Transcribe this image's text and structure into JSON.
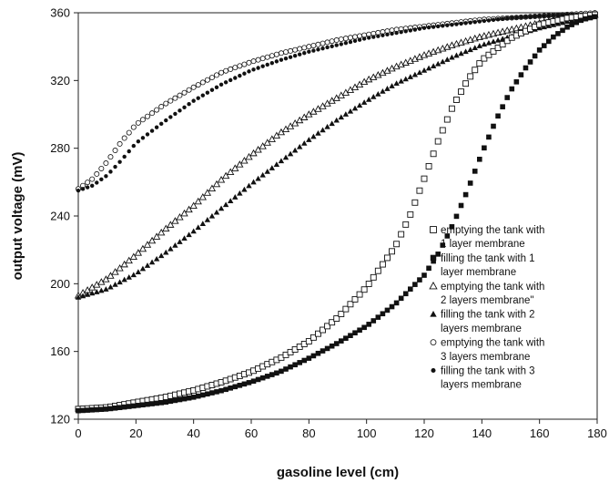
{
  "chart_data": {
    "type": "scatter",
    "title": "",
    "xlabel": "gasoline level (cm)",
    "ylabel": "output voltage (mV)",
    "xlim": [
      0,
      180
    ],
    "ylim": [
      120,
      360
    ],
    "xticks": [
      0,
      20,
      40,
      60,
      80,
      100,
      120,
      140,
      160,
      180
    ],
    "yticks": [
      120,
      160,
      200,
      240,
      280,
      320,
      360
    ],
    "grid": false,
    "legend_position": "right",
    "series": [
      {
        "name": "emptying the tank with 1 layer membrane",
        "legend_lines": [
          "emptying the tank with",
          "1 layer membrane"
        ],
        "marker": "square-open",
        "color": "#111111",
        "points": [
          [
            0,
            126
          ],
          [
            10,
            127
          ],
          [
            20,
            130
          ],
          [
            30,
            133
          ],
          [
            40,
            137
          ],
          [
            50,
            142
          ],
          [
            60,
            148
          ],
          [
            70,
            156
          ],
          [
            80,
            166
          ],
          [
            90,
            180
          ],
          [
            100,
            198
          ],
          [
            110,
            222
          ],
          [
            115,
            240
          ],
          [
            120,
            262
          ],
          [
            125,
            285
          ],
          [
            130,
            305
          ],
          [
            135,
            320
          ],
          [
            140,
            332
          ],
          [
            150,
            345
          ],
          [
            160,
            353
          ],
          [
            170,
            357
          ],
          [
            180,
            359
          ]
        ]
      },
      {
        "name": "filling the tank with 1 layer membrane",
        "legend_lines": [
          "filling the tank with 1",
          "layer membrane"
        ],
        "marker": "square-filled",
        "color": "#111111",
        "points": [
          [
            0,
            125
          ],
          [
            10,
            126
          ],
          [
            20,
            128
          ],
          [
            30,
            130
          ],
          [
            40,
            133
          ],
          [
            50,
            137
          ],
          [
            60,
            142
          ],
          [
            70,
            148
          ],
          [
            80,
            156
          ],
          [
            90,
            165
          ],
          [
            100,
            175
          ],
          [
            110,
            188
          ],
          [
            120,
            205
          ],
          [
            125,
            218
          ],
          [
            130,
            235
          ],
          [
            135,
            255
          ],
          [
            140,
            277
          ],
          [
            145,
            297
          ],
          [
            150,
            314
          ],
          [
            155,
            327
          ],
          [
            160,
            338
          ],
          [
            165,
            346
          ],
          [
            170,
            352
          ],
          [
            175,
            356
          ],
          [
            180,
            358
          ]
        ]
      },
      {
        "name": "emptying the tank with 2 layers membrane\"",
        "legend_lines": [
          "emptying the tank with",
          "2 layers membrane\""
        ],
        "marker": "triangle-open",
        "color": "#111111",
        "points": [
          [
            0,
            193
          ],
          [
            10,
            203
          ],
          [
            20,
            217
          ],
          [
            30,
            232
          ],
          [
            40,
            246
          ],
          [
            50,
            262
          ],
          [
            60,
            276
          ],
          [
            70,
            289
          ],
          [
            80,
            300
          ],
          [
            90,
            310
          ],
          [
            100,
            320
          ],
          [
            110,
            328
          ],
          [
            120,
            335
          ],
          [
            130,
            341
          ],
          [
            140,
            346
          ],
          [
            150,
            350
          ],
          [
            160,
            354
          ],
          [
            170,
            357
          ],
          [
            180,
            359
          ]
        ]
      },
      {
        "name": "filling the tank with 2 layers membrane",
        "legend_lines": [
          "filling the tank with 2",
          "layers membrane"
        ],
        "marker": "triangle-filled",
        "color": "#111111",
        "points": [
          [
            0,
            192
          ],
          [
            10,
            197
          ],
          [
            20,
            206
          ],
          [
            30,
            218
          ],
          [
            40,
            231
          ],
          [
            50,
            245
          ],
          [
            60,
            259
          ],
          [
            70,
            272
          ],
          [
            80,
            285
          ],
          [
            90,
            297
          ],
          [
            100,
            308
          ],
          [
            110,
            318
          ],
          [
            120,
            326
          ],
          [
            130,
            334
          ],
          [
            140,
            341
          ],
          [
            150,
            346
          ],
          [
            160,
            351
          ],
          [
            170,
            355
          ],
          [
            180,
            358
          ]
        ]
      },
      {
        "name": "emptying the tank with 3 layers membrane",
        "legend_lines": [
          "emptying the tank with",
          "3 layers membrane"
        ],
        "marker": "circle-open",
        "color": "#111111",
        "points": [
          [
            0,
            256
          ],
          [
            5,
            262
          ],
          [
            10,
            272
          ],
          [
            15,
            284
          ],
          [
            20,
            294
          ],
          [
            30,
            306
          ],
          [
            40,
            316
          ],
          [
            50,
            325
          ],
          [
            60,
            331
          ],
          [
            70,
            336
          ],
          [
            80,
            340
          ],
          [
            90,
            344
          ],
          [
            100,
            347
          ],
          [
            110,
            350
          ],
          [
            120,
            352
          ],
          [
            130,
            354
          ],
          [
            140,
            356
          ],
          [
            150,
            357
          ],
          [
            160,
            358
          ],
          [
            170,
            359
          ],
          [
            180,
            360
          ]
        ]
      },
      {
        "name": "filling the tank with 3 layers membrane",
        "legend_lines": [
          "filling the tank with 3",
          "layers membrane"
        ],
        "marker": "circle-filled",
        "color": "#111111",
        "points": [
          [
            0,
            255
          ],
          [
            5,
            258
          ],
          [
            10,
            264
          ],
          [
            15,
            273
          ],
          [
            20,
            283
          ],
          [
            30,
            296
          ],
          [
            40,
            308
          ],
          [
            50,
            318
          ],
          [
            60,
            326
          ],
          [
            70,
            332
          ],
          [
            80,
            337
          ],
          [
            90,
            341
          ],
          [
            100,
            345
          ],
          [
            110,
            348
          ],
          [
            120,
            351
          ],
          [
            130,
            353
          ],
          [
            140,
            355
          ],
          [
            150,
            357
          ],
          [
            160,
            358
          ],
          [
            170,
            359
          ],
          [
            180,
            359
          ]
        ]
      }
    ]
  }
}
